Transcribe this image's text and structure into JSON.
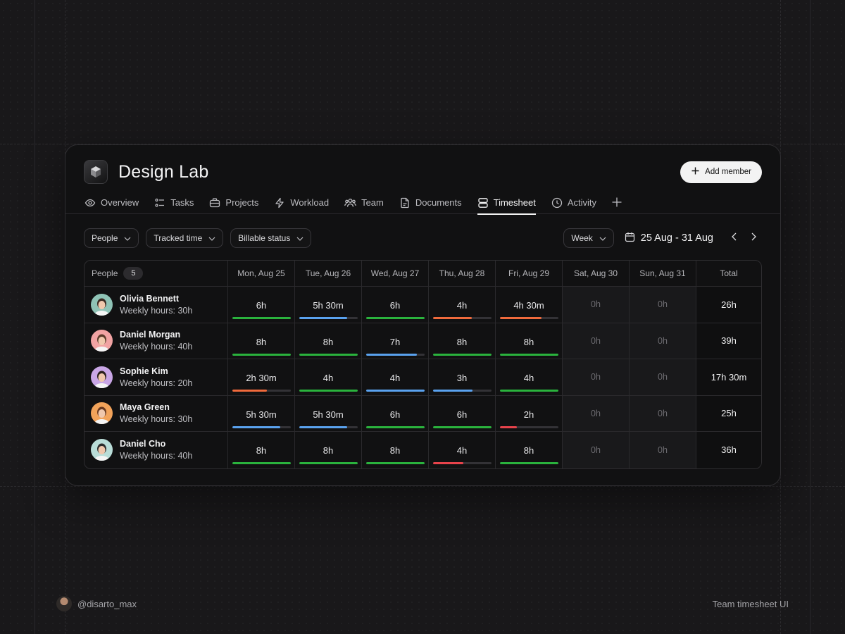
{
  "workspace": {
    "title": "Design Lab",
    "add_member_label": "Add member"
  },
  "tabs": [
    {
      "label": "Overview",
      "icon": "eye-icon"
    },
    {
      "label": "Tasks",
      "icon": "tasks-icon"
    },
    {
      "label": "Projects",
      "icon": "briefcase-icon"
    },
    {
      "label": "Workload",
      "icon": "bolt-icon"
    },
    {
      "label": "Team",
      "icon": "users-icon"
    },
    {
      "label": "Documents",
      "icon": "document-icon"
    },
    {
      "label": "Timesheet",
      "icon": "timesheet-icon",
      "active": true
    },
    {
      "label": "Activity",
      "icon": "clock-icon"
    }
  ],
  "filters": {
    "people": "People",
    "tracked_time": "Tracked time",
    "billable_status": "Billable status"
  },
  "period": {
    "view": "Week",
    "range": "25 Aug - 31 Aug"
  },
  "table": {
    "people_header": "People",
    "people_count": "5",
    "days": [
      "Mon, Aug 25",
      "Tue, Aug 26",
      "Wed, Aug 27",
      "Thu, Aug 28",
      "Fri, Aug 29",
      "Sat, Aug 30",
      "Sun, Aug 31"
    ],
    "total_header": "Total",
    "rows": [
      {
        "name": "Olivia Bennett",
        "weekly": "Weekly hours: 30h",
        "avatar_bg": "#8fc3b6",
        "hair": "#3a2a22",
        "days": [
          {
            "v": "6h",
            "p": 1.0,
            "c": "#2ab33d"
          },
          {
            "v": "5h 30m",
            "p": 0.83,
            "c": "#5aa2ef"
          },
          {
            "v": "6h",
            "p": 1.0,
            "c": "#2ab33d"
          },
          {
            "v": "4h",
            "p": 0.67,
            "c": "#f06a3c"
          },
          {
            "v": "4h 30m",
            "p": 0.72,
            "c": "#f06a3c"
          }
        ],
        "weekend": [
          "0h",
          "0h"
        ],
        "total": "26h"
      },
      {
        "name": "Daniel Morgan",
        "weekly": "Weekly hours: 40h",
        "avatar_bg": "#f1a3a3",
        "hair": "#5a3a2a",
        "days": [
          {
            "v": "8h",
            "p": 1.0,
            "c": "#2ab33d"
          },
          {
            "v": "8h",
            "p": 1.0,
            "c": "#2ab33d"
          },
          {
            "v": "7h",
            "p": 0.87,
            "c": "#5aa2ef"
          },
          {
            "v": "8h",
            "p": 1.0,
            "c": "#2ab33d"
          },
          {
            "v": "8h",
            "p": 1.0,
            "c": "#2ab33d"
          }
        ],
        "weekend": [
          "0h",
          "0h"
        ],
        "total": "39h"
      },
      {
        "name": "Sophie Kim",
        "weekly": "Weekly hours: 20h",
        "avatar_bg": "#c9a6e6",
        "hair": "#2a1f1c",
        "days": [
          {
            "v": "2h 30m",
            "p": 0.6,
            "c": "#f06a3c"
          },
          {
            "v": "4h",
            "p": 1.0,
            "c": "#2ab33d"
          },
          {
            "v": "4h",
            "p": 1.0,
            "c": "#5aa2ef"
          },
          {
            "v": "3h",
            "p": 0.68,
            "c": "#5aa2ef"
          },
          {
            "v": "4h",
            "p": 1.0,
            "c": "#2ab33d"
          }
        ],
        "weekend": [
          "0h",
          "0h"
        ],
        "total": "17h 30m"
      },
      {
        "name": "Maya Green",
        "weekly": "Weekly hours: 30h",
        "avatar_bg": "#f2a35a",
        "hair": "#6a3a20",
        "days": [
          {
            "v": "5h 30m",
            "p": 0.83,
            "c": "#5aa2ef"
          },
          {
            "v": "5h 30m",
            "p": 0.83,
            "c": "#5aa2ef"
          },
          {
            "v": "6h",
            "p": 1.0,
            "c": "#2ab33d"
          },
          {
            "v": "6h",
            "p": 1.0,
            "c": "#2ab33d"
          },
          {
            "v": "2h",
            "p": 0.3,
            "c": "#e8434b"
          }
        ],
        "weekend": [
          "0h",
          "0h"
        ],
        "total": "25h"
      },
      {
        "name": "Daniel Cho",
        "weekly": "Weekly hours: 40h",
        "avatar_bg": "#b9ddd8",
        "hair": "#2b2b2b",
        "days": [
          {
            "v": "8h",
            "p": 1.0,
            "c": "#2ab33d"
          },
          {
            "v": "8h",
            "p": 1.0,
            "c": "#2ab33d"
          },
          {
            "v": "8h",
            "p": 1.0,
            "c": "#2ab33d"
          },
          {
            "v": "4h",
            "p": 0.52,
            "c": "#e8434b"
          },
          {
            "v": "8h",
            "p": 1.0,
            "c": "#2ab33d"
          }
        ],
        "weekend": [
          "0h",
          "0h"
        ],
        "total": "36h"
      }
    ]
  },
  "footer": {
    "author": "@disarto_max",
    "caption": "Team timesheet UI"
  }
}
